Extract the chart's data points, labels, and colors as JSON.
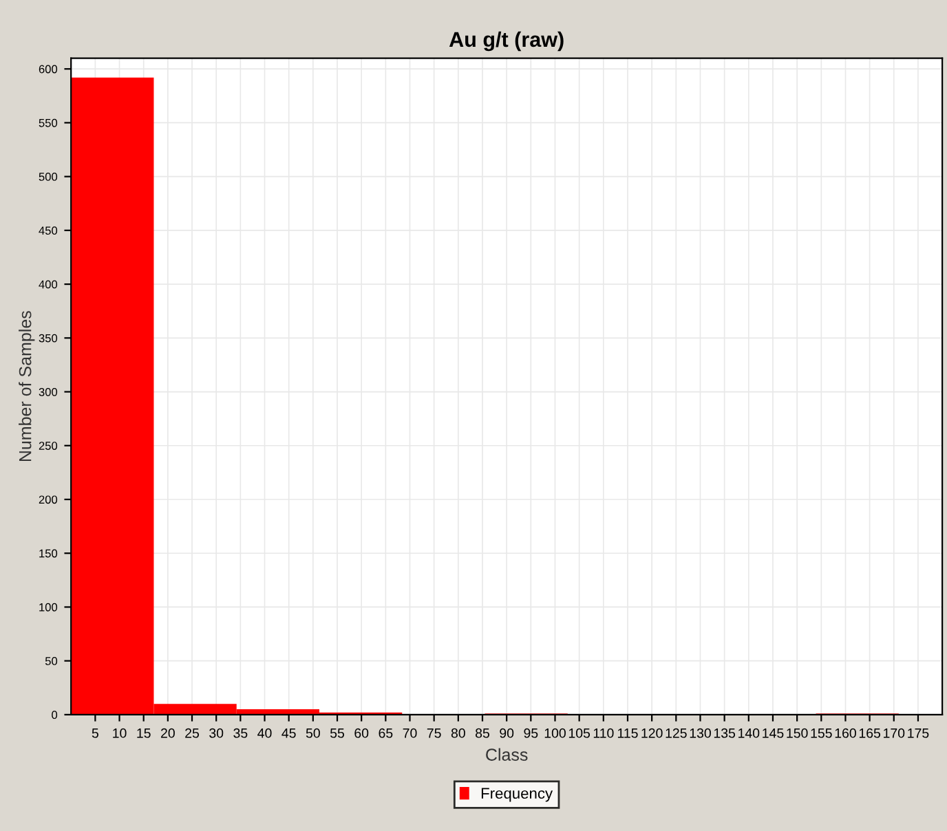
{
  "chart_data": {
    "type": "histogram",
    "title": "Au g/t (raw)",
    "xlabel": "Class",
    "ylabel": "Number of Samples",
    "bins": [
      0,
      17.1,
      34.2,
      51.3,
      68.4,
      85.5,
      102.6,
      119.7,
      136.8,
      153.9,
      171
    ],
    "series": [
      {
        "name": "Frequency",
        "color": "#ff0000",
        "values": [
          592,
          10,
          5,
          2,
          0,
          1,
          0,
          0,
          0,
          1
        ]
      }
    ],
    "xlim": [
      0,
      180
    ],
    "xticks": [
      5,
      10,
      15,
      20,
      25,
      30,
      35,
      40,
      45,
      50,
      55,
      60,
      65,
      70,
      75,
      80,
      85,
      90,
      95,
      100,
      105,
      110,
      115,
      120,
      125,
      130,
      135,
      140,
      145,
      150,
      155,
      160,
      165,
      170,
      175
    ],
    "ylim": [
      0,
      610
    ],
    "yticks": [
      0,
      50,
      100,
      150,
      200,
      250,
      300,
      350,
      400,
      450,
      500,
      550,
      600
    ],
    "grid": true,
    "legend": "bottom"
  }
}
